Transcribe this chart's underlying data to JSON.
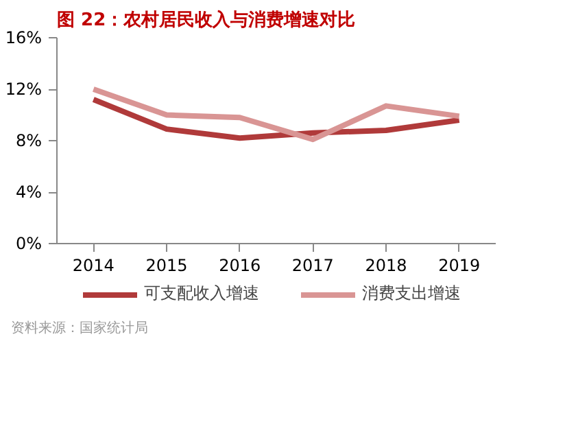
{
  "chart_data": {
    "type": "line",
    "title": "图 22：农村居民收入与消费增速对比",
    "categories": [
      "2014",
      "2015",
      "2016",
      "2017",
      "2018",
      "2019"
    ],
    "series": [
      {
        "name": "可支配收入增速",
        "color": "#b03a3a",
        "values": [
          11.2,
          8.9,
          8.2,
          8.6,
          8.8,
          9.6
        ]
      },
      {
        "name": "消费支出增速",
        "color": "#d99594",
        "values": [
          12.0,
          10.0,
          9.8,
          8.1,
          10.7,
          9.9
        ]
      }
    ],
    "ylim": [
      0,
      16
    ],
    "yticks": [
      {
        "value": 0,
        "label": "0%"
      },
      {
        "value": 4,
        "label": "4%"
      },
      {
        "value": 8,
        "label": "8%"
      },
      {
        "value": 12,
        "label": "12%"
      },
      {
        "value": 16,
        "label": "16%"
      }
    ],
    "grid": false,
    "legend": "bottom",
    "marker": "none",
    "line_style": "solid",
    "annotations": [
      "资料来源：国家统计局"
    ]
  }
}
